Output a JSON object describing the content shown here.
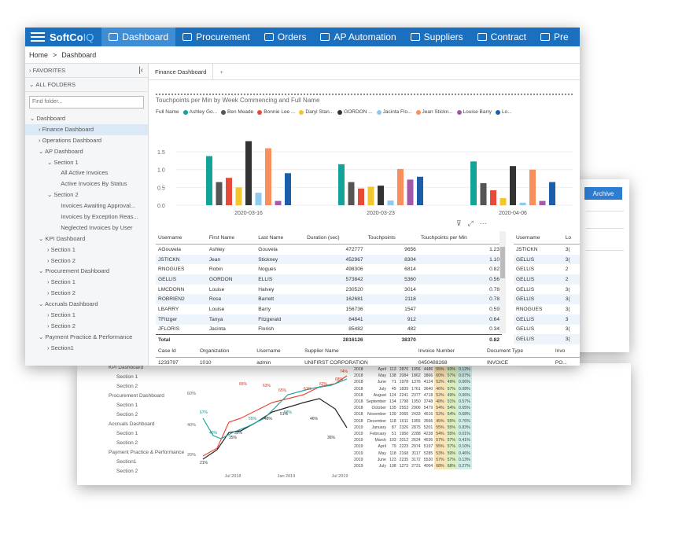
{
  "nav": {
    "logo_main": "SoftCo",
    "logo_suffix": "IQ",
    "items": [
      {
        "label": "Dashboard",
        "icon": "gauge-icon",
        "active": true
      },
      {
        "label": "Procurement",
        "icon": "cart-icon",
        "active": false
      },
      {
        "label": "Orders",
        "icon": "briefcase-icon",
        "active": false
      },
      {
        "label": "AP Automation",
        "icon": "document-icon",
        "active": false
      },
      {
        "label": "Suppliers",
        "icon": "handshake-icon",
        "active": false
      },
      {
        "label": "Contract",
        "icon": "contract-icon",
        "active": false
      },
      {
        "label": "Pre",
        "icon": "truck-icon",
        "active": false
      }
    ]
  },
  "breadcrumb": {
    "home": "Home",
    "sep": ">",
    "current": "Dashboard"
  },
  "sidebar": {
    "favorites": "FAVORITES",
    "all_folders": "ALL FOLDERS",
    "find_placeholder": "Find folder...",
    "tree": [
      "Dashboard",
      "Finance Dashboard",
      "Operations Dashboard",
      "AP Dashboard",
      "Section 1",
      "All Active Invoices",
      "Active Invoices By Status",
      "Section 2",
      "Invoices Awaiting Approval...",
      "Invoices by Exception Reas...",
      "Neglected Invoices by User",
      "KPI Dashboard",
      "Section 1",
      "Section 2",
      "Procurement Dashboard",
      "Section 1",
      "Section 2",
      "Accruals Dashboard",
      "Section 1",
      "Section 2",
      "Payment Practice & Performance",
      "Section1"
    ]
  },
  "tabs": {
    "active": "Finance Dashboard",
    "add": "+"
  },
  "chart_title": "Touchpoints per Min by Week Commencing and Full Name",
  "legend_label": "Full Name",
  "chart_data": {
    "type": "bar",
    "categories": [
      "2020-03-16",
      "2020-03-23",
      "2020-04-06"
    ],
    "series": [
      {
        "name": "Ashley Go...",
        "color": "#12a39b",
        "values": [
          1.38,
          1.15,
          1.23
        ]
      },
      {
        "name": "Ben Meade",
        "color": "#555555",
        "values": [
          0.65,
          0.65,
          0.62
        ]
      },
      {
        "name": "Bonnie Lee ...",
        "color": "#e84a3a",
        "values": [
          0.77,
          0.47,
          0.42
        ]
      },
      {
        "name": "Daryl Stan...",
        "color": "#f2c62e",
        "values": [
          0.5,
          0.52,
          0.2
        ]
      },
      {
        "name": "GORDON ...",
        "color": "#333333",
        "values": [
          1.8,
          0.55,
          1.1
        ]
      },
      {
        "name": "Jacinta Flo...",
        "color": "#8ec9ef",
        "values": [
          0.35,
          0.13,
          0.07
        ]
      },
      {
        "name": "Jean Stickn...",
        "color": "#f98f5c",
        "values": [
          1.6,
          1.02,
          1.0
        ]
      },
      {
        "name": "Louise Barry",
        "color": "#a15ba6",
        "values": [
          0.12,
          0.72,
          0.12
        ]
      },
      {
        "name": "Lo...",
        "color": "#1c5fa8",
        "values": [
          0.9,
          0.8,
          0.65
        ]
      }
    ],
    "ytick_labels": [
      "0.0",
      "0.5",
      "1.0",
      "1.5"
    ],
    "ylim": [
      0,
      1.9
    ]
  },
  "table1": {
    "headers": [
      "Username",
      "First Name",
      "Last Name",
      "Duration (sec)",
      "Touchpoints",
      "Touchpoints per Min"
    ],
    "rows": [
      [
        "AGouvela",
        "Ashley",
        "Gouvela",
        "472777",
        "9656",
        "1.23"
      ],
      [
        "JSTICKN",
        "Jean",
        "Stickney",
        "452967",
        "8304",
        "1.10"
      ],
      [
        "RNOGUES",
        "Robin",
        "Nogues",
        "498306",
        "6814",
        "0.82"
      ],
      [
        "GELLIS",
        "GORDON",
        "ELLIS",
        "573842",
        "5360",
        "0.56"
      ],
      [
        "LMCDONN",
        "Louise",
        "Halvey",
        "230520",
        "3014",
        "0.78"
      ],
      [
        "ROBRIEN2",
        "Rose",
        "Barrett",
        "162681",
        "2118",
        "0.78"
      ],
      [
        "LBARRY",
        "Louise",
        "Barry",
        "156736",
        "1547",
        "0.59"
      ],
      [
        "TFitzger",
        "Tanya",
        "Fitzgerald",
        "84841",
        "912",
        "0.64"
      ],
      [
        "JFLORIS",
        "Jacinta",
        "Florish",
        "85482",
        "482",
        "0.34"
      ]
    ],
    "total": [
      "Total",
      "",
      "",
      "2816126",
      "38370",
      "0.82"
    ]
  },
  "table2": {
    "headers": [
      "Case Id",
      "Organization",
      "Username",
      "Supplier Name",
      "Invoice Number",
      "Document Type",
      "Invo"
    ],
    "rows": [
      [
        "1233797",
        "1010",
        "admin",
        "UNIFIRST CORPORATION",
        "0450488268",
        "INVOICE",
        "PO..."
      ]
    ]
  },
  "table3": {
    "headers": [
      "Username",
      "Lo"
    ],
    "rows": [
      [
        "JSTICKN",
        "3("
      ],
      [
        "GELLIS",
        "3("
      ],
      [
        "GELLIS",
        "2"
      ],
      [
        "GELLIS",
        "2"
      ],
      [
        "GELLIS",
        "3("
      ],
      [
        "GELLIS",
        "3("
      ],
      [
        "RNOGUES",
        "3("
      ],
      [
        "GELLIS",
        "3"
      ],
      [
        "GELLIS",
        "3("
      ],
      [
        "GELLIS",
        "3("
      ]
    ]
  },
  "archive_label": "Archive",
  "back2": {
    "sidebar": [
      "KPI Dashboard",
      "Section 1",
      "Section 2",
      "Procurement Dashboard",
      "Section 1",
      "Section 2",
      "Accruals Dashboard",
      "Section 1",
      "Section 2",
      "Payment Practice & Performance",
      "Section1",
      "Section 2"
    ],
    "line_labels": [
      "60%",
      "40%",
      "20%"
    ],
    "x_labels": [
      "Jul 2018",
      "Jan 2019",
      "Jul 2019"
    ],
    "point_labels_red": [
      "65%",
      "63%",
      "65%",
      "61%",
      "62%",
      "68%",
      "74%"
    ],
    "point_labels_black": [
      "21%",
      "35%",
      "39%",
      "48%",
      "51%",
      "46%",
      "36%"
    ],
    "point_labels_teal": [
      "67%",
      "46%",
      "55%",
      "58%"
    ],
    "rows": [
      [
        "2018",
        "April",
        "113",
        "2870",
        "1056",
        "4486",
        "55%",
        "93%",
        "0.12%"
      ],
      [
        "2018",
        "May",
        "138",
        "2084",
        "1862",
        "3866",
        "60%",
        "57%",
        "0.07%"
      ],
      [
        "2018",
        "June",
        "71",
        "1978",
        "1376",
        "4124",
        "52%",
        "49%",
        "0.06%"
      ],
      [
        "2018",
        "July",
        "45",
        "1839",
        "1761",
        "3640",
        "46%",
        "57%",
        "0.08%"
      ],
      [
        "2018",
        "August",
        "124",
        "2241",
        "2377",
        "4718",
        "52%",
        "49%",
        "0.06%"
      ],
      [
        "2018",
        "September",
        "134",
        "1798",
        "1950",
        "3748",
        "48%",
        "51%",
        "0.57%"
      ],
      [
        "2018",
        "October",
        "135",
        "2553",
        "2906",
        "5479",
        "54%",
        "54%",
        "0.65%"
      ],
      [
        "2018",
        "November",
        "139",
        "2065",
        "2433",
        "4616",
        "52%",
        "54%",
        "0.68%"
      ],
      [
        "2018",
        "December",
        "118",
        "1611",
        "1955",
        "3566",
        "45%",
        "55%",
        "0.76%"
      ],
      [
        "2019",
        "January",
        "87",
        "2326",
        "2875",
        "5201",
        "55%",
        "55%",
        "0.83%"
      ],
      [
        "2019",
        "February",
        "51",
        "1950",
        "2288",
        "4238",
        "54%",
        "55%",
        "0.01%"
      ],
      [
        "2019",
        "March",
        "103",
        "2012",
        "2624",
        "4636",
        "57%",
        "57%",
        "0.41%"
      ],
      [
        "2019",
        "April",
        "79",
        "2223",
        "2974",
        "5197",
        "55%",
        "57%",
        "0.10%"
      ],
      [
        "2019",
        "May",
        "118",
        "2168",
        "3117",
        "5285",
        "53%",
        "59%",
        "0.46%"
      ],
      [
        "2019",
        "June",
        "123",
        "2235",
        "3172",
        "5530",
        "57%",
        "57%",
        "0.13%"
      ],
      [
        "2019",
        "July",
        "108",
        "1273",
        "2731",
        "4004",
        "68%",
        "68%",
        "0.27%"
      ]
    ]
  }
}
